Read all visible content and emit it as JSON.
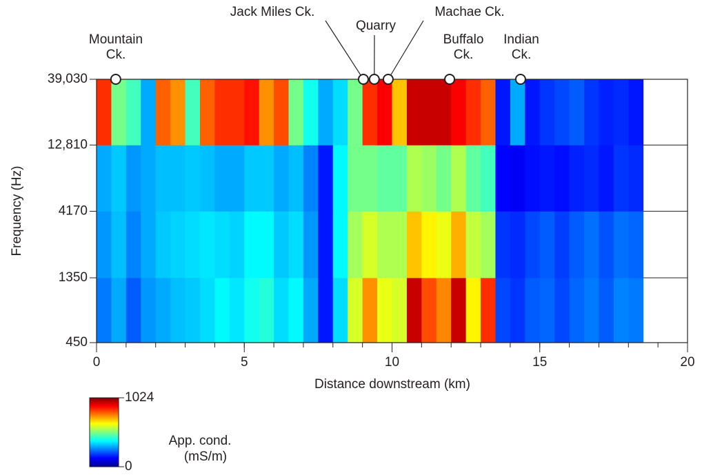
{
  "chart_data": {
    "type": "heatmap",
    "xlabel": "Distance downstream (km)",
    "ylabel": "Frequency (Hz)",
    "xlim": [
      0,
      20
    ],
    "xticks": [
      0,
      5,
      10,
      15,
      20
    ],
    "xminorticks": [
      0,
      1,
      2,
      3,
      4,
      5,
      6,
      7,
      8,
      9,
      10,
      11,
      12,
      13,
      14,
      15,
      16,
      17,
      18,
      19,
      20
    ],
    "ylim": [
      450,
      39030
    ],
    "yscale": "log",
    "yticks": [
      450,
      1350,
      4170,
      {
        "value": 12810,
        "label": "12,810"
      },
      {
        "value": 39030,
        "label": "39,030"
      }
    ],
    "x_bins": [
      0,
      0.5,
      1,
      1.5,
      2,
      2.5,
      3,
      3.5,
      4,
      4.5,
      5,
      5.5,
      6,
      6.5,
      7,
      7.5,
      8,
      8.5,
      9,
      9.5,
      10,
      10.5,
      11,
      11.5,
      12,
      12.5,
      13,
      13.5,
      14,
      14.5,
      15,
      15.5,
      16,
      16.5,
      17,
      17.5,
      18,
      18.5
    ],
    "y_bins": [
      450,
      1350,
      4170,
      12810,
      39030
    ],
    "z": [
      [
        250,
        300,
        220,
        280,
        300,
        320,
        330,
        350,
        380,
        360,
        400,
        420,
        350,
        380,
        300,
        150,
        350,
        600,
        750,
        620,
        600,
        950,
        820,
        760,
        950,
        650,
        850,
        200,
        180,
        220,
        230,
        200,
        230,
        250,
        220,
        260,
        250
      ],
      [
        280,
        320,
        260,
        300,
        330,
        340,
        350,
        360,
        350,
        340,
        380,
        380,
        330,
        350,
        280,
        150,
        380,
        550,
        600,
        560,
        560,
        700,
        650,
        620,
        720,
        580,
        550,
        180,
        170,
        200,
        220,
        190,
        220,
        240,
        210,
        240,
        230
      ],
      [
        300,
        330,
        280,
        300,
        320,
        320,
        330,
        320,
        300,
        300,
        330,
        330,
        300,
        320,
        260,
        150,
        380,
        500,
        500,
        480,
        480,
        560,
        540,
        500,
        560,
        480,
        450,
        130,
        120,
        140,
        150,
        140,
        160,
        170,
        150,
        180,
        170
      ],
      [
        850,
        500,
        450,
        300,
        800,
        750,
        450,
        800,
        850,
        850,
        880,
        750,
        820,
        500,
        400,
        300,
        350,
        500,
        850,
        900,
        700,
        950,
        950,
        950,
        900,
        850,
        800,
        150,
        300,
        150,
        180,
        200,
        220,
        180,
        160,
        170,
        150
      ]
    ],
    "colorscale": "jet",
    "zlim": [
      0,
      1024
    ],
    "zticks": [
      0,
      1024
    ],
    "colorbar_label": [
      "App. cond.",
      "(mS/m)"
    ],
    "sites": [
      {
        "label": [
          "Mountain",
          "Ck."
        ],
        "x": 0.65
      },
      {
        "label": [
          "Jack Miles Ck."
        ],
        "x": 9.03
      },
      {
        "label": [
          "Quarry"
        ],
        "x": 9.4
      },
      {
        "label": [
          "Machae Ck."
        ],
        "x": 9.87
      },
      {
        "label": [
          "Buffalo",
          "Ck."
        ],
        "x": 11.95
      },
      {
        "label": [
          "Indian",
          "Ck."
        ],
        "x": 14.35
      }
    ]
  }
}
